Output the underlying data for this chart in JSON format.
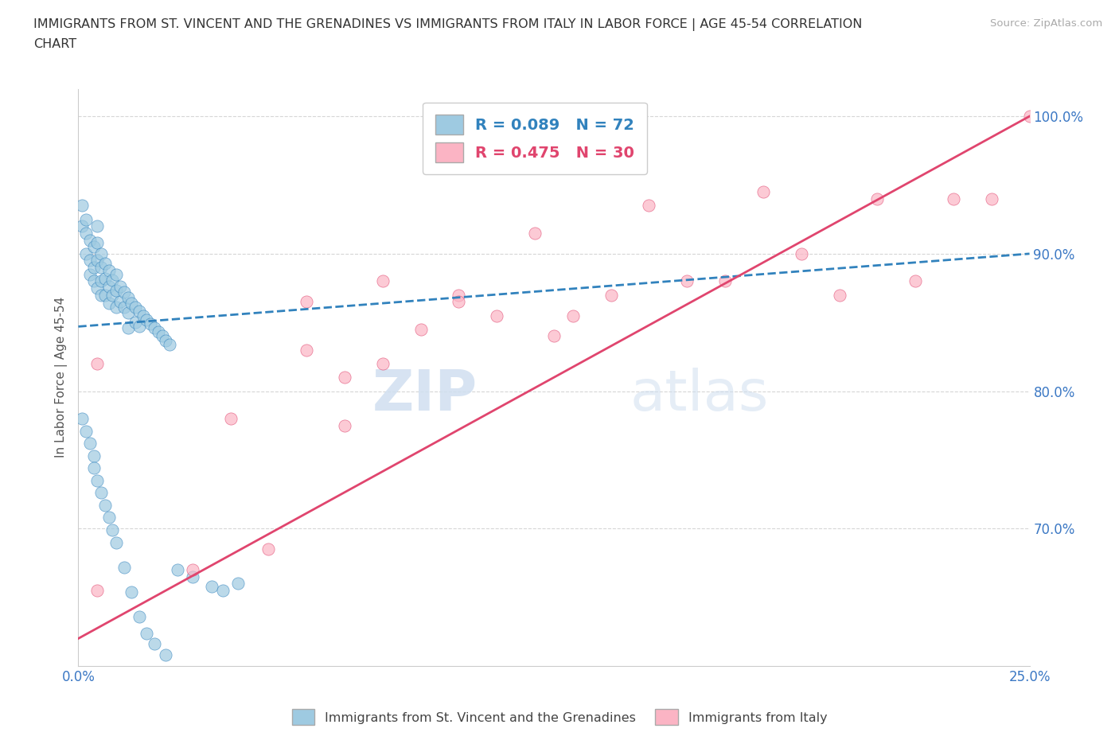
{
  "title_line1": "IMMIGRANTS FROM ST. VINCENT AND THE GRENADINES VS IMMIGRANTS FROM ITALY IN LABOR FORCE | AGE 45-54 CORRELATION",
  "title_line2": "CHART",
  "source_text": "Source: ZipAtlas.com",
  "ylabel": "In Labor Force | Age 45-54",
  "x_min": 0.0,
  "x_max": 0.25,
  "y_min": 0.6,
  "y_max": 1.02,
  "y_ticks": [
    0.7,
    0.8,
    0.9,
    1.0
  ],
  "y_tick_labels": [
    "70.0%",
    "80.0%",
    "90.0%",
    "100.0%"
  ],
  "x_ticks": [
    0.0,
    0.05,
    0.1,
    0.15,
    0.2,
    0.25
  ],
  "x_tick_labels": [
    "0.0%",
    "",
    "",
    "",
    "",
    "25.0%"
  ],
  "blue_color": "#9ecae1",
  "pink_color": "#fbb4c4",
  "blue_line_color": "#3182bd",
  "pink_line_color": "#e0456e",
  "R_blue": 0.089,
  "N_blue": 72,
  "R_pink": 0.475,
  "N_pink": 30,
  "legend_label_blue": "Immigrants from St. Vincent and the Grenadines",
  "legend_label_pink": "Immigrants from Italy",
  "watermark_zip": "ZIP",
  "watermark_atlas": "atlas",
  "blue_scatter_x": [
    0.001,
    0.001,
    0.002,
    0.002,
    0.002,
    0.003,
    0.003,
    0.003,
    0.004,
    0.004,
    0.004,
    0.005,
    0.005,
    0.005,
    0.005,
    0.006,
    0.006,
    0.006,
    0.006,
    0.007,
    0.007,
    0.007,
    0.008,
    0.008,
    0.008,
    0.009,
    0.009,
    0.01,
    0.01,
    0.01,
    0.011,
    0.011,
    0.012,
    0.012,
    0.013,
    0.013,
    0.013,
    0.014,
    0.015,
    0.015,
    0.016,
    0.016,
    0.017,
    0.018,
    0.019,
    0.02,
    0.021,
    0.022,
    0.023,
    0.024,
    0.001,
    0.002,
    0.003,
    0.004,
    0.004,
    0.005,
    0.006,
    0.007,
    0.008,
    0.009,
    0.01,
    0.012,
    0.014,
    0.016,
    0.018,
    0.02,
    0.023,
    0.026,
    0.03,
    0.035,
    0.038,
    0.042
  ],
  "blue_scatter_y": [
    0.935,
    0.92,
    0.925,
    0.915,
    0.9,
    0.91,
    0.895,
    0.885,
    0.905,
    0.89,
    0.88,
    0.92,
    0.908,
    0.895,
    0.875,
    0.9,
    0.89,
    0.88,
    0.87,
    0.893,
    0.882,
    0.87,
    0.888,
    0.876,
    0.864,
    0.881,
    0.87,
    0.885,
    0.873,
    0.861,
    0.876,
    0.865,
    0.872,
    0.861,
    0.868,
    0.857,
    0.846,
    0.864,
    0.861,
    0.85,
    0.858,
    0.847,
    0.855,
    0.852,
    0.849,
    0.846,
    0.843,
    0.84,
    0.837,
    0.834,
    0.78,
    0.771,
    0.762,
    0.753,
    0.744,
    0.735,
    0.726,
    0.717,
    0.708,
    0.699,
    0.69,
    0.672,
    0.654,
    0.636,
    0.624,
    0.616,
    0.608,
    0.67,
    0.665,
    0.658,
    0.655,
    0.66
  ],
  "pink_scatter_x": [
    0.005,
    0.005,
    0.03,
    0.04,
    0.05,
    0.06,
    0.06,
    0.07,
    0.07,
    0.08,
    0.08,
    0.09,
    0.1,
    0.1,
    0.11,
    0.12,
    0.125,
    0.13,
    0.14,
    0.15,
    0.16,
    0.17,
    0.18,
    0.19,
    0.2,
    0.21,
    0.22,
    0.23,
    0.24,
    0.25
  ],
  "pink_scatter_y": [
    0.82,
    0.655,
    0.67,
    0.78,
    0.685,
    0.83,
    0.865,
    0.81,
    0.775,
    0.88,
    0.82,
    0.845,
    0.87,
    0.865,
    0.855,
    0.915,
    0.84,
    0.855,
    0.87,
    0.935,
    0.88,
    0.88,
    0.945,
    0.9,
    0.87,
    0.94,
    0.88,
    0.94,
    0.94,
    1.0
  ],
  "blue_trend_x": [
    0.0,
    0.25
  ],
  "blue_trend_y": [
    0.847,
    0.9
  ],
  "pink_trend_x": [
    0.0,
    0.25
  ],
  "pink_trend_y": [
    0.62,
    1.0
  ]
}
